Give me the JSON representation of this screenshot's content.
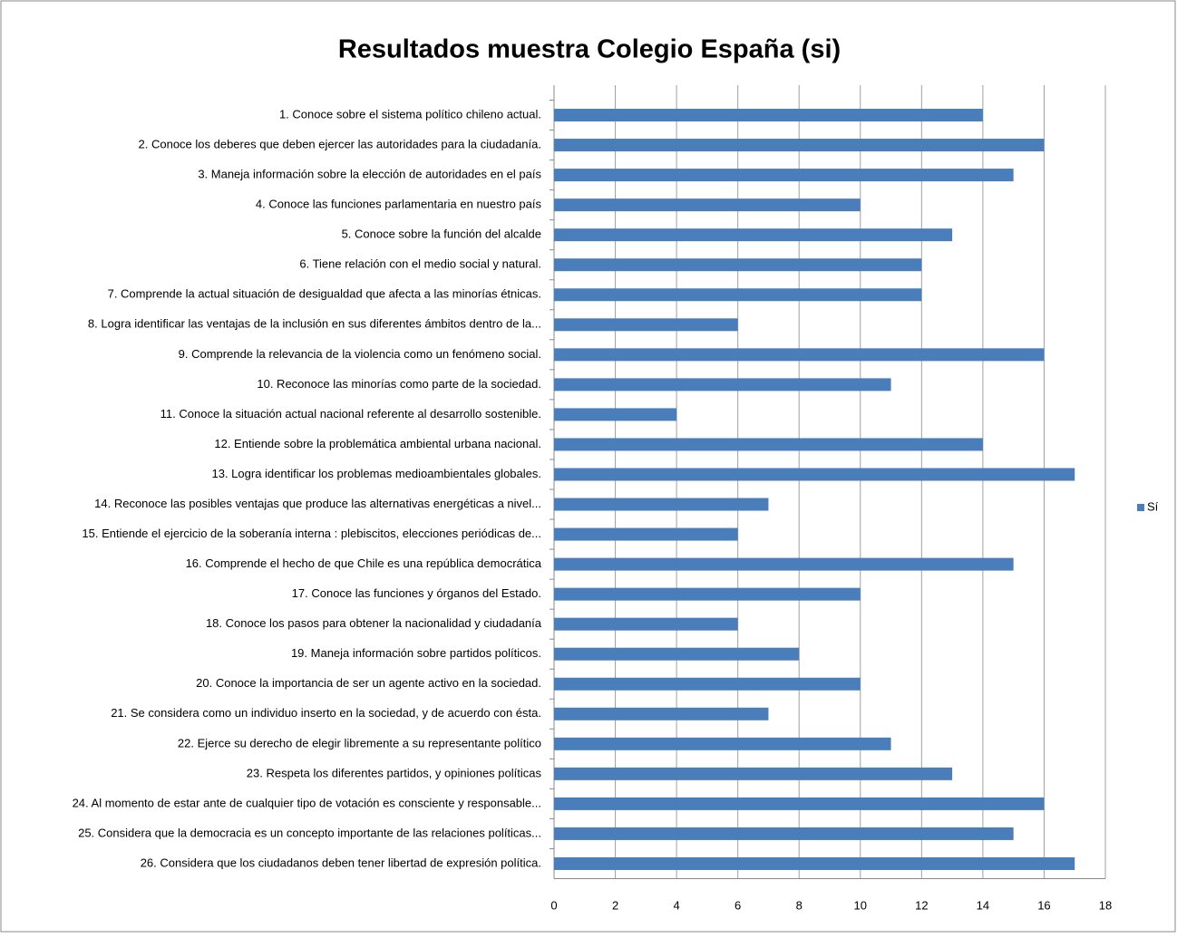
{
  "chart_data": {
    "type": "barh",
    "title": "Resultados muestra Colegio España (si)",
    "categories": [
      "1. Conoce sobre el sistema político chileno actual.",
      "2. Conoce los deberes que deben ejercer las autoridades para la ciudadanía.",
      "3. Maneja información sobre la elección de autoridades en el país",
      "4. Conoce  las funciones  parlamentaria en nuestro país",
      "5.  Conoce sobre la función del alcalde",
      "6. Tiene relación con el medio social y natural.",
      "7.  Comprende la actual situación de desigualdad que afecta a las minorías étnicas.",
      "8.  Logra identificar las ventajas de la inclusión en sus diferentes ámbitos dentro de la...",
      "9.  Comprende la relevancia de la violencia como un fenómeno social.",
      "10.  Reconoce las minorías como parte de la sociedad.",
      "11.  Conoce la situación actual nacional referente al desarrollo sostenible.",
      "12.  Entiende sobre  la problemática ambiental urbana nacional.",
      "13.  Logra identificar los problemas medioambientales globales.",
      "14. Reconoce las posibles ventajas que produce las alternativas energéticas a nivel...",
      "15. Entiende el ejercicio de la soberanía interna : plebiscitos, elecciones periódicas de...",
      "16. Comprende el hecho de que Chile es una república democrática",
      "17.  Conoce las funciones y órganos del Estado.",
      "18.  Conoce los pasos para obtener la nacionalidad y ciudadanía",
      "19.  Maneja información sobre partidos políticos.",
      "20. Conoce la importancia de ser un agente activo en la sociedad.",
      "21. Se considera como un individuo inserto en la sociedad, y de acuerdo con ésta.",
      "22. Ejerce su derecho de elegir libremente a su representante político",
      "23. Respeta los diferentes partidos, y opiniones políticas",
      "24.  Al momento de estar ante de cualquier tipo de votación es consciente y responsable...",
      "25.  Considera que la democracia es un concepto importante de las relaciones políticas...",
      "26. Considera que los ciudadanos deben tener libertad de expresión política."
    ],
    "series": [
      {
        "name": "Sí",
        "color": "#4a7ebb",
        "values": [
          14,
          16,
          15,
          10,
          13,
          12,
          12,
          6,
          16,
          11,
          4,
          14,
          17,
          7,
          6,
          15,
          10,
          6,
          8,
          10,
          7,
          11,
          13,
          16,
          15,
          17
        ]
      }
    ],
    "xlim": [
      0,
      18
    ],
    "xticks": [
      0,
      2,
      4,
      6,
      8,
      10,
      12,
      14,
      16,
      18
    ],
    "grid": true,
    "legend": "right"
  }
}
